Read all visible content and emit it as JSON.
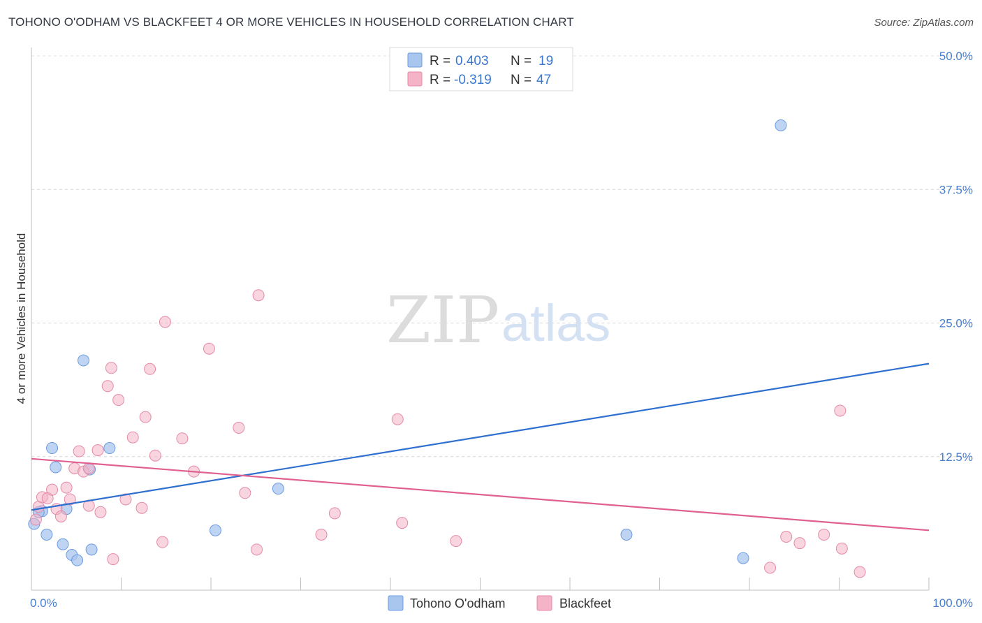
{
  "title": "TOHONO O'ODHAM VS BLACKFEET 4 OR MORE VEHICLES IN HOUSEHOLD CORRELATION CHART",
  "source": "Source: ZipAtlas.com",
  "watermark": {
    "zip": "ZIP",
    "atlas": "atlas"
  },
  "legend": {
    "rows": [
      {
        "r_label": "R =",
        "r_value": "0.403",
        "n_label": "N =",
        "n_value": "19",
        "color": "#a9c6ee"
      },
      {
        "r_label": "R =",
        "r_value": "-0.319",
        "n_label": "N =",
        "n_value": "47",
        "color": "#f4b3c6"
      }
    ]
  },
  "bottom_legend": [
    "Tohono O'odham",
    "Blackfeet"
  ],
  "chart_data": {
    "type": "scatter",
    "title": "TOHONO O'ODHAM VS BLACKFEET 4 OR MORE VEHICLES IN HOUSEHOLD CORRELATION CHART",
    "xlabel": "",
    "ylabel": "4 or more Vehicles in Household",
    "xlim": [
      0,
      100
    ],
    "ylim": [
      0,
      50
    ],
    "x_tick_labels": [
      "0.0%",
      "100.0%"
    ],
    "y_ticks": [
      12.5,
      25.0,
      37.5,
      50.0
    ],
    "y_tick_labels": [
      "12.5%",
      "25.0%",
      "37.5%",
      "50.0%"
    ],
    "grid": true,
    "series": [
      {
        "name": "Tohono O'odham",
        "color": "#a9c6ee",
        "stroke": "#6b9be0",
        "line_color": "#2f6fd0",
        "trend": {
          "x": [
            0,
            100
          ],
          "y": [
            7.5,
            21.2
          ]
        },
        "points": [
          {
            "x": 0.3,
            "y": 6.2
          },
          {
            "x": 1.2,
            "y": 7.4
          },
          {
            "x": 1.7,
            "y": 5.2
          },
          {
            "x": 2.3,
            "y": 13.3
          },
          {
            "x": 2.7,
            "y": 11.5
          },
          {
            "x": 3.5,
            "y": 4.3
          },
          {
            "x": 3.9,
            "y": 7.6
          },
          {
            "x": 4.5,
            "y": 3.3
          },
          {
            "x": 5.1,
            "y": 2.8
          },
          {
            "x": 5.8,
            "y": 21.5
          },
          {
            "x": 6.5,
            "y": 11.3
          },
          {
            "x": 6.7,
            "y": 3.8
          },
          {
            "x": 8.7,
            "y": 13.3
          },
          {
            "x": 27.5,
            "y": 9.5
          },
          {
            "x": 20.5,
            "y": 5.6
          },
          {
            "x": 66.3,
            "y": 5.2
          },
          {
            "x": 79.3,
            "y": 3.0
          },
          {
            "x": 83.5,
            "y": 43.5
          },
          {
            "x": 0.8,
            "y": 7.3
          }
        ]
      },
      {
        "name": "Blackfeet",
        "color": "#f4b3c6",
        "stroke": "#e48aa8",
        "line_color": "#e0608f",
        "trend": {
          "x": [
            0,
            100
          ],
          "y": [
            12.3,
            5.6
          ]
        },
        "points": [
          {
            "x": 0.5,
            "y": 6.6
          },
          {
            "x": 0.8,
            "y": 7.8
          },
          {
            "x": 1.2,
            "y": 8.7
          },
          {
            "x": 1.8,
            "y": 8.6
          },
          {
            "x": 2.3,
            "y": 9.4
          },
          {
            "x": 2.8,
            "y": 7.6
          },
          {
            "x": 3.3,
            "y": 6.9
          },
          {
            "x": 3.9,
            "y": 9.6
          },
          {
            "x": 4.3,
            "y": 8.5
          },
          {
            "x": 4.8,
            "y": 11.4
          },
          {
            "x": 5.3,
            "y": 13.0
          },
          {
            "x": 5.8,
            "y": 11.1
          },
          {
            "x": 6.4,
            "y": 11.4
          },
          {
            "x": 6.4,
            "y": 7.9
          },
          {
            "x": 7.4,
            "y": 13.1
          },
          {
            "x": 7.7,
            "y": 7.3
          },
          {
            "x": 8.5,
            "y": 19.1
          },
          {
            "x": 8.9,
            "y": 20.8
          },
          {
            "x": 9.1,
            "y": 2.9
          },
          {
            "x": 9.7,
            "y": 17.8
          },
          {
            "x": 10.5,
            "y": 8.5
          },
          {
            "x": 11.3,
            "y": 14.3
          },
          {
            "x": 12.3,
            "y": 7.7
          },
          {
            "x": 12.7,
            "y": 16.2
          },
          {
            "x": 13.2,
            "y": 20.7
          },
          {
            "x": 13.8,
            "y": 12.6
          },
          {
            "x": 14.6,
            "y": 4.5
          },
          {
            "x": 14.9,
            "y": 25.1
          },
          {
            "x": 16.8,
            "y": 14.2
          },
          {
            "x": 18.1,
            "y": 11.1
          },
          {
            "x": 19.8,
            "y": 22.6
          },
          {
            "x": 23.1,
            "y": 15.2
          },
          {
            "x": 23.8,
            "y": 9.1
          },
          {
            "x": 25.1,
            "y": 3.8
          },
          {
            "x": 25.3,
            "y": 27.6
          },
          {
            "x": 32.3,
            "y": 5.2
          },
          {
            "x": 33.8,
            "y": 7.2
          },
          {
            "x": 40.8,
            "y": 16.0
          },
          {
            "x": 41.3,
            "y": 6.3
          },
          {
            "x": 47.3,
            "y": 4.6
          },
          {
            "x": 82.3,
            "y": 2.1
          },
          {
            "x": 84.1,
            "y": 5.0
          },
          {
            "x": 85.6,
            "y": 4.4
          },
          {
            "x": 88.3,
            "y": 5.2
          },
          {
            "x": 90.1,
            "y": 16.8
          },
          {
            "x": 90.3,
            "y": 3.9
          },
          {
            "x": 92.3,
            "y": 1.7
          }
        ]
      }
    ]
  }
}
